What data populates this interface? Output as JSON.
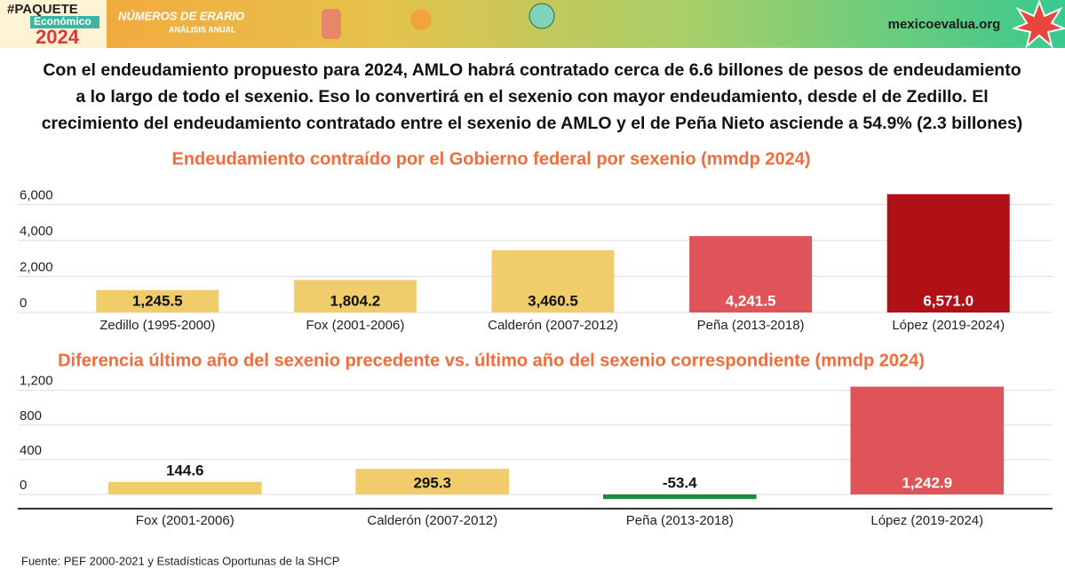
{
  "header": {
    "badge_top": "#PAQUETE",
    "badge_mid": "Económico",
    "badge_year": "2024",
    "series_name": "NÚMEROS DE ERARIO",
    "series_sub": "ANÁLISIS ANUAL",
    "site": "mexicoevalua.org"
  },
  "headline": [
    "Con el endeudamiento propuesto para 2024, AMLO habrá contratado cerca de 6.6 billones de pesos de endeudamiento",
    "a lo largo de todo el sexenio. Eso lo convertirá en el sexenio con mayor endeudamiento, desde el de Zedillo. El",
    "crecimiento del endeudamiento contratado entre el sexenio de AMLO y el de Peña Nieto asciende a 54.9% (2.3 billones)"
  ],
  "chart_data": [
    {
      "type": "bar",
      "title": "Endeudamiento contraído por el Gobierno federal por sexenio (mmdp 2024)",
      "categories": [
        "Zedillo (1995-2000)",
        "Fox (2001-2006)",
        "Calderón (2007-2012)",
        "Peña (2013-2018)",
        "López (2019-2024)"
      ],
      "values": [
        1245.5,
        1804.2,
        3460.5,
        4241.5,
        6571.0
      ],
      "value_labels": [
        "1,245.5",
        "1,804.2",
        "3,460.5",
        "4,241.5",
        "6,571.0"
      ],
      "colors": [
        "#f0cd6a",
        "#f0cd6a",
        "#f0cd6a",
        "#de5459",
        "#b01016"
      ],
      "ylim": [
        0,
        7000
      ],
      "yticks": [
        0,
        {
          "value": 2000,
          "label": "2,000"
        },
        {
          "value": 4000,
          "label": "4,000"
        },
        {
          "value": 6000,
          "label": "6,000"
        }
      ],
      "grid": true
    },
    {
      "type": "bar",
      "title": "Diferencia último año del sexenio precedente vs. último año del sexenio correspondiente (mmdp 2024)",
      "categories": [
        "Fox (2001-2006)",
        "Calderón (2007-2012)",
        "Peña (2013-2018)",
        "López (2019-2024)"
      ],
      "values": [
        144.6,
        295.3,
        -53.4,
        1242.9
      ],
      "value_labels": [
        "144.6",
        "295.3",
        "-53.4",
        "1,242.9"
      ],
      "colors": [
        "#f0cd6a",
        "#f0cd6a",
        "#1e8a3c",
        "#de5459"
      ],
      "ylim": [
        -164,
        1300
      ],
      "yticks": [
        0,
        400,
        800,
        {
          "value": 1200,
          "label": "1,200"
        }
      ],
      "grid": true
    }
  ],
  "source": "Fuente: PEF 2000-2021 y Estadísticas Oportunas de la SHCP"
}
